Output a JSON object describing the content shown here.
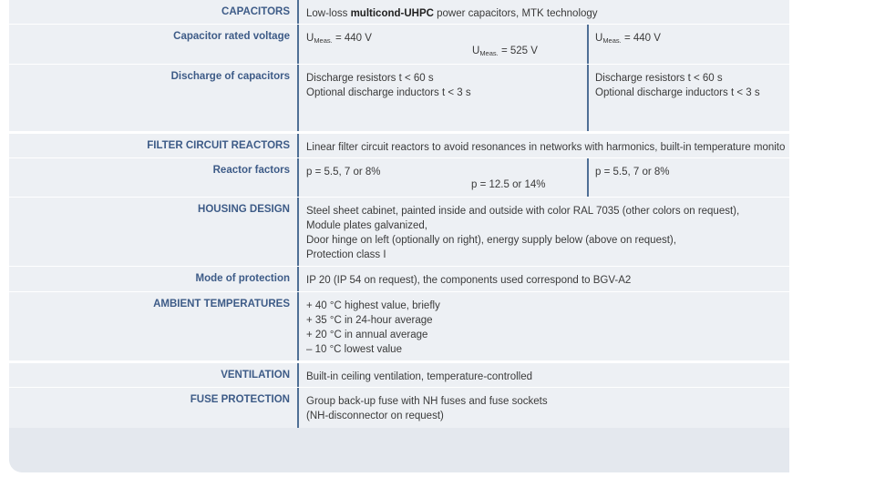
{
  "rows": {
    "capacitors": {
      "label": "CAPACITORS",
      "text_pre": "Low-loss ",
      "text_bold": "multicond-UHPC",
      "text_post": " power capacitors, MTK technology"
    },
    "rated_voltage": {
      "label": "Capacitor rated voltage",
      "u": "U",
      "sub": "Meas.",
      "left_value": "= 440 V",
      "mid_value": "= 525 V",
      "right_value": "= 440 V"
    },
    "discharge": {
      "label": "Discharge of capacitors",
      "left": [
        "Discharge resistors t < 60 s",
        "Optional discharge inductors t < 3 s"
      ],
      "right": [
        "Discharge resistors t < 60 s",
        "Optional discharge inductors t < 3 s"
      ]
    },
    "filter_reactors": {
      "label": "FILTER CIRCUIT REACTORS",
      "text": "Linear filter circuit reactors to avoid resonances in networks with harmonics, built-in temperature monito"
    },
    "reactor_factors": {
      "label": "Reactor factors",
      "left": "p = 5.5, 7 or 8%",
      "mid": "p = 12.5 or 14%",
      "right": "p = 5.5, 7 or 8%"
    },
    "housing": {
      "label": "HOUSING DESIGN",
      "lines": [
        "Steel sheet cabinet, painted inside and outside with color RAL 7035 (other colors on request),",
        "Module plates galvanized,",
        "Door hinge on left (optionally on right), energy supply below (above on request),",
        "Protection class I"
      ]
    },
    "protection": {
      "label": "Mode of protection",
      "text": "IP 20 (IP 54 on request), the components used correspond to BGV-A2"
    },
    "ambient": {
      "label": "AMBIENT TEMPERATURES",
      "lines": [
        "+ 40 °C highest value, briefly",
        "+ 35 °C in 24-hour average",
        "+ 20 °C in annual average",
        "– 10 °C lowest value"
      ]
    },
    "ventilation": {
      "label": "VENTILATION",
      "text": "Built-in ceiling ventilation, temperature-controlled"
    },
    "fuse": {
      "label": "FUSE PROTECTION",
      "lines": [
        "Group back-up fuse with NH fuses and fuse sockets",
        "(NH-disconnector on request)"
      ]
    }
  }
}
